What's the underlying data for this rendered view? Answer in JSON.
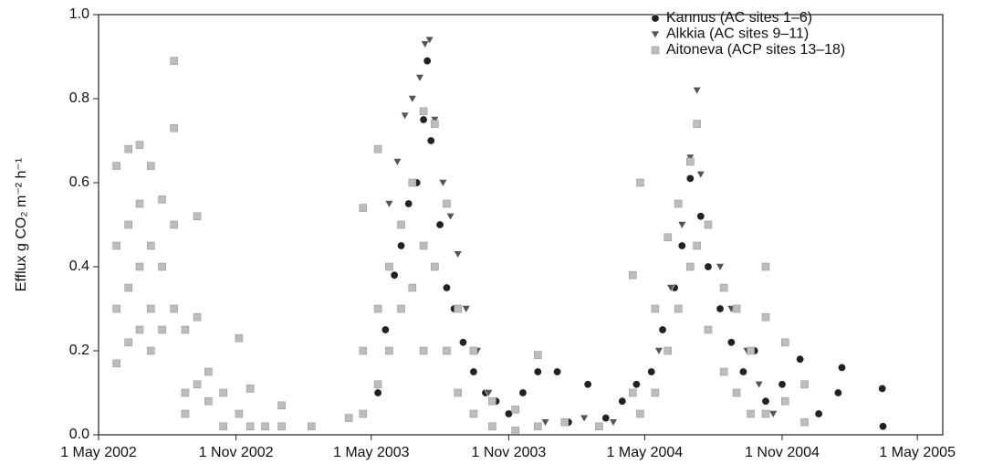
{
  "chart_data": {
    "type": "scatter",
    "y_label": "Efflux g CO₂ m⁻² h⁻¹",
    "xlim": [
      "2002-05-01",
      "2005-06-04"
    ],
    "xticks": [
      {
        "value": "2002-05-01",
        "label": "1 May 2002"
      },
      {
        "value": "2002-11-01",
        "label": "1 Nov 2002"
      },
      {
        "value": "2003-05-01",
        "label": "1 May 2003"
      },
      {
        "value": "2003-11-01",
        "label": "1 Nov 2003"
      },
      {
        "value": "2004-05-01",
        "label": "1 May 2004"
      },
      {
        "value": "2004-11-01",
        "label": "1 Nov 2004"
      },
      {
        "value": "2005-05-01",
        "label": "1 May 2005"
      }
    ],
    "ylim": [
      0,
      1
    ],
    "yticks": [
      {
        "value": 0,
        "label": "0.0"
      },
      0.2,
      0.4,
      0.6,
      0.8,
      {
        "value": 1,
        "label": "1.0"
      }
    ],
    "legend": "upper right",
    "series": [
      {
        "name": "Kannus (AC sites 1–6)",
        "color": "#222222",
        "marker": "circle",
        "x": [
          "2003-05-10",
          "2003-05-20",
          "2003-06-01",
          "2003-06-10",
          "2003-06-20",
          "2003-07-01",
          "2003-07-10",
          "2003-07-15",
          "2003-07-20",
          "2003-08-01",
          "2003-08-10",
          "2003-08-20",
          "2003-09-01",
          "2003-09-15",
          "2003-10-01",
          "2003-10-15",
          "2003-11-01",
          "2003-11-20",
          "2003-12-10",
          "2004-01-05",
          "2004-01-20",
          "2004-02-15",
          "2004-03-10",
          "2004-04-01",
          "2004-04-20",
          "2004-05-10",
          "2004-05-25",
          "2004-06-10",
          "2004-06-20",
          "2004-07-01",
          "2004-07-15",
          "2004-07-25",
          "2004-08-10",
          "2004-08-25",
          "2004-09-10",
          "2004-09-25",
          "2004-10-10",
          "2004-11-01",
          "2004-11-25",
          "2004-12-20",
          "2005-01-15",
          "2005-01-20",
          "2005-03-15",
          "2005-03-16"
        ],
        "values": [
          0.1,
          0.25,
          0.38,
          0.45,
          0.55,
          0.6,
          0.75,
          0.89,
          0.7,
          0.5,
          0.35,
          0.3,
          0.22,
          0.15,
          0.1,
          0.08,
          0.05,
          0.1,
          0.15,
          0.15,
          0.03,
          0.12,
          0.04,
          0.08,
          0.12,
          0.15,
          0.25,
          0.35,
          0.45,
          0.61,
          0.52,
          0.4,
          0.3,
          0.22,
          0.15,
          0.2,
          0.08,
          0.12,
          0.18,
          0.05,
          0.1,
          0.16,
          0.11,
          0.02
        ]
      },
      {
        "name": "Alkkia (AC sites 9–11)",
        "color": "#555555",
        "marker": "triangle-down",
        "x": [
          "2003-05-25",
          "2003-06-05",
          "2003-06-15",
          "2003-06-25",
          "2003-07-05",
          "2003-07-12",
          "2003-07-18",
          "2003-07-25",
          "2003-08-05",
          "2003-08-15",
          "2003-08-25",
          "2003-09-05",
          "2003-09-20",
          "2003-10-05",
          "2003-11-10",
          "2003-12-20",
          "2004-02-10",
          "2004-03-20",
          "2004-05-20",
          "2004-06-05",
          "2004-06-20",
          "2004-07-01",
          "2004-07-10",
          "2004-07-15",
          "2004-07-25",
          "2004-08-10",
          "2004-08-25",
          "2004-09-15",
          "2004-10-01",
          "2004-10-20"
        ],
        "values": [
          0.55,
          0.65,
          0.76,
          0.8,
          0.85,
          0.93,
          0.94,
          0.75,
          0.6,
          0.52,
          0.43,
          0.3,
          0.2,
          0.1,
          0.06,
          0.03,
          0.04,
          0.03,
          0.2,
          0.35,
          0.5,
          0.66,
          0.82,
          0.62,
          0.5,
          0.4,
          0.3,
          0.2,
          0.12,
          0.05
        ]
      },
      {
        "name": "Aitoneva (ACP sites 13–18)",
        "color": "#bdbdbd",
        "marker": "square",
        "x": [
          "2002-05-25",
          "2002-05-25",
          "2002-05-25",
          "2002-05-25",
          "2002-06-10",
          "2002-06-10",
          "2002-06-10",
          "2002-06-10",
          "2002-06-25",
          "2002-06-25",
          "2002-06-25",
          "2002-06-25",
          "2002-07-10",
          "2002-07-10",
          "2002-07-10",
          "2002-07-10",
          "2002-07-25",
          "2002-07-25",
          "2002-07-25",
          "2002-08-10",
          "2002-08-10",
          "2002-08-10",
          "2002-08-10",
          "2002-08-25",
          "2002-08-25",
          "2002-08-25",
          "2002-09-10",
          "2002-09-10",
          "2002-09-10",
          "2002-09-25",
          "2002-09-25",
          "2002-10-15",
          "2002-10-15",
          "2002-11-05",
          "2002-11-05",
          "2002-11-20",
          "2002-11-20",
          "2002-12-10",
          "2003-01-01",
          "2003-01-01",
          "2003-02-10",
          "2003-04-01",
          "2003-04-20",
          "2003-04-20",
          "2003-04-20",
          "2003-05-10",
          "2003-05-10",
          "2003-05-10",
          "2003-05-25",
          "2003-05-25",
          "2003-06-10",
          "2003-06-10",
          "2003-06-25",
          "2003-06-25",
          "2003-07-10",
          "2003-07-10",
          "2003-07-10",
          "2003-07-25",
          "2003-07-25",
          "2003-08-10",
          "2003-08-10",
          "2003-08-25",
          "2003-08-25",
          "2003-09-15",
          "2003-09-15",
          "2003-10-10",
          "2003-10-10",
          "2003-11-10",
          "2003-11-10",
          "2003-12-10",
          "2003-12-10",
          "2004-01-15",
          "2004-03-01",
          "2004-04-15",
          "2004-04-15",
          "2004-04-25",
          "2004-04-25",
          "2004-05-15",
          "2004-05-15",
          "2004-06-01",
          "2004-06-01",
          "2004-06-15",
          "2004-06-15",
          "2004-07-01",
          "2004-07-01",
          "2004-07-10",
          "2004-07-10",
          "2004-07-25",
          "2004-07-25",
          "2004-08-15",
          "2004-08-15",
          "2004-09-01",
          "2004-09-01",
          "2004-09-20",
          "2004-09-20",
          "2004-10-10",
          "2004-10-10",
          "2004-10-10",
          "2004-11-05",
          "2004-11-05",
          "2004-12-01",
          "2004-12-01"
        ],
        "values": [
          0.64,
          0.45,
          0.3,
          0.17,
          0.68,
          0.5,
          0.35,
          0.22,
          0.69,
          0.55,
          0.4,
          0.25,
          0.64,
          0.45,
          0.3,
          0.2,
          0.56,
          0.4,
          0.25,
          0.89,
          0.73,
          0.5,
          0.3,
          0.25,
          0.1,
          0.05,
          0.52,
          0.28,
          0.12,
          0.15,
          0.08,
          0.1,
          0.02,
          0.23,
          0.05,
          0.11,
          0.02,
          0.02,
          0.07,
          0.02,
          0.02,
          0.04,
          0.54,
          0.2,
          0.05,
          0.68,
          0.3,
          0.12,
          0.4,
          0.2,
          0.5,
          0.3,
          0.6,
          0.35,
          0.77,
          0.45,
          0.2,
          0.74,
          0.4,
          0.55,
          0.2,
          0.3,
          0.1,
          0.2,
          0.05,
          0.08,
          0.02,
          0.06,
          0.01,
          0.19,
          0.02,
          0.03,
          0.02,
          0.38,
          0.1,
          0.6,
          0.05,
          0.3,
          0.1,
          0.47,
          0.2,
          0.55,
          0.3,
          0.65,
          0.4,
          0.74,
          0.45,
          0.5,
          0.25,
          0.35,
          0.15,
          0.3,
          0.1,
          0.2,
          0.05,
          0.4,
          0.28,
          0.05,
          0.22,
          0.08,
          0.12,
          0.03
        ]
      }
    ]
  }
}
